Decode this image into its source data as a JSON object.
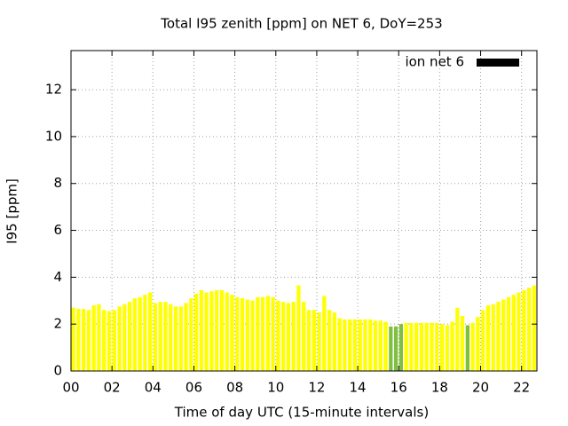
{
  "chart_data": {
    "type": "bar",
    "title": "Total I95 zenith [ppm] on NET 6, DoY=253",
    "xlabel": "Time of day UTC (15-minute intervals)",
    "ylabel": "I95 [ppm]",
    "legend": "ion net 6",
    "legend_color": "#000000",
    "legend_position": "top-right",
    "grid": true,
    "xlim": [
      0,
      22.75
    ],
    "ylim": [
      0,
      13.67
    ],
    "xticks": [
      {
        "value": 0,
        "label": "00"
      },
      {
        "value": 2,
        "label": "02"
      },
      {
        "value": 4,
        "label": "04"
      },
      {
        "value": 6,
        "label": "06"
      },
      {
        "value": 8,
        "label": "08"
      },
      10,
      12,
      14,
      16,
      18,
      20,
      22
    ],
    "yticks": [
      0,
      2,
      4,
      6,
      8,
      10,
      12
    ],
    "bar_width": 0.25,
    "x": [
      0,
      0.25,
      0.5,
      0.75,
      1,
      1.25,
      1.5,
      1.75,
      2,
      2.25,
      2.5,
      2.75,
      3,
      3.25,
      3.5,
      3.75,
      4,
      4.25,
      4.5,
      4.75,
      5,
      5.25,
      5.5,
      5.75,
      6,
      6.25,
      6.5,
      6.75,
      7,
      7.25,
      7.5,
      7.75,
      8,
      8.25,
      8.5,
      8.75,
      9,
      9.25,
      9.5,
      9.75,
      10,
      10.25,
      10.5,
      10.75,
      11,
      11.25,
      11.5,
      11.75,
      12,
      12.25,
      12.5,
      12.75,
      13,
      13.25,
      13.5,
      13.75,
      14,
      14.25,
      14.5,
      14.75,
      15,
      15.25,
      15.5,
      15.75,
      16,
      16.25,
      16.5,
      16.75,
      17,
      17.25,
      17.5,
      17.75,
      18,
      18.25,
      18.5,
      18.75,
      19,
      19.25,
      19.5,
      19.75,
      20,
      20.25,
      20.5,
      20.75,
      21,
      21.25,
      21.5,
      21.75,
      22,
      22.25,
      22.5
    ],
    "values": [
      2.7,
      2.65,
      2.65,
      2.6,
      2.8,
      2.85,
      2.6,
      2.55,
      2.6,
      2.75,
      2.85,
      2.95,
      3.1,
      3.15,
      3.25,
      3.35,
      2.9,
      2.95,
      2.95,
      2.85,
      2.75,
      2.75,
      2.9,
      3.1,
      3.3,
      3.45,
      3.35,
      3.4,
      3.45,
      3.45,
      3.35,
      3.25,
      3.15,
      3.1,
      3.05,
      3.0,
      3.15,
      3.15,
      3.2,
      3.15,
      3.0,
      2.95,
      2.9,
      2.95,
      3.65,
      2.95,
      2.6,
      2.6,
      2.5,
      3.2,
      2.6,
      2.5,
      2.25,
      2.2,
      2.2,
      2.2,
      2.2,
      2.2,
      2.2,
      2.15,
      2.15,
      2.1,
      1.9,
      1.9,
      2.0,
      2.05,
      2.05,
      2.05,
      2.05,
      2.05,
      2.05,
      2.05,
      2.0,
      1.95,
      2.1,
      2.7,
      2.35,
      1.95,
      2.05,
      2.3,
      2.6,
      2.8,
      2.85,
      2.95,
      3.05,
      3.15,
      3.25,
      3.35,
      3.45,
      3.55,
      3.65
    ],
    "colors": [
      "#ffff00",
      "#ffff00",
      "#ffff00",
      "#ffff00",
      "#ffff00",
      "#ffff00",
      "#ffff00",
      "#ffff00",
      "#ffff00",
      "#ffff00",
      "#ffff00",
      "#ffff00",
      "#ffff00",
      "#ffff00",
      "#ffff00",
      "#ffff00",
      "#ffff00",
      "#ffff00",
      "#ffff00",
      "#ffff00",
      "#ffff00",
      "#ffff00",
      "#ffff00",
      "#ffff00",
      "#ffff00",
      "#ffff00",
      "#ffff00",
      "#ffff00",
      "#ffff00",
      "#ffff00",
      "#ffff00",
      "#ffff00",
      "#ffff00",
      "#ffff00",
      "#ffff00",
      "#ffff00",
      "#ffff00",
      "#ffff00",
      "#ffff00",
      "#ffff00",
      "#ffff00",
      "#ffff00",
      "#ffff00",
      "#ffff00",
      "#ffff00",
      "#ffff00",
      "#ffff00",
      "#ffff00",
      "#ffff00",
      "#ffff00",
      "#ffff00",
      "#ffff00",
      "#ffff00",
      "#ffff00",
      "#ffff00",
      "#ffff00",
      "#ffff00",
      "#ffff00",
      "#ffff00",
      "#ffff00",
      "#ffff00",
      "#ffff00",
      "#80c040",
      "#80c040",
      "#80c040",
      "#ffff00",
      "#ffff00",
      "#ffff00",
      "#ffff00",
      "#ffff00",
      "#ffff00",
      "#ffff00",
      "#ffff00",
      "#ffff00",
      "#ffff00",
      "#ffff00",
      "#ffff00",
      "#80c040",
      "#ffff00",
      "#ffff00",
      "#ffff00",
      "#ffff00",
      "#ffff00",
      "#ffff00",
      "#ffff00",
      "#ffff00",
      "#ffff00",
      "#ffff00",
      "#ffff00",
      "#ffff00",
      "#ffff00"
    ]
  }
}
